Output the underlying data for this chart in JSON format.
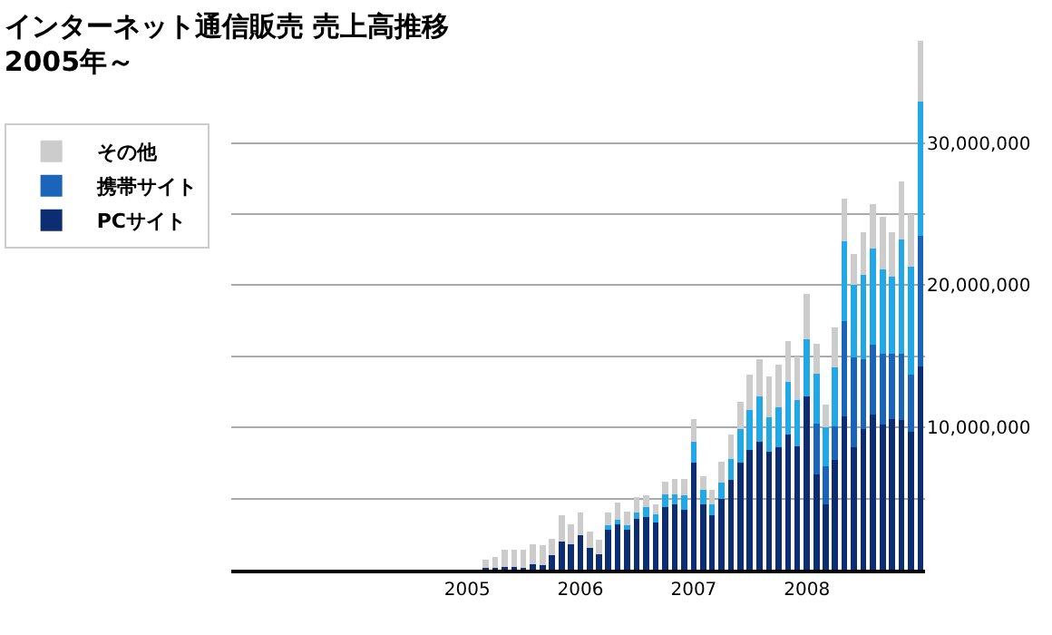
{
  "chart_data": {
    "type": "bar",
    "title": "インターネット通信販売 売上高推移",
    "subtitle": "2005年～",
    "stacked": true,
    "x": [
      "2005-03",
      "2005-04",
      "2005-05",
      "2005-06",
      "2005-07",
      "2005-08",
      "2005-09",
      "2005-10",
      "2005-11",
      "2005-12",
      "2006-01",
      "2006-02",
      "2006-03",
      "2006-04",
      "2006-05",
      "2006-06",
      "2006-07",
      "2006-08",
      "2006-09",
      "2006-10",
      "2006-11",
      "2006-12",
      "2007-01",
      "2007-02",
      "2007-03",
      "2007-04",
      "2007-05",
      "2007-06",
      "2007-07",
      "2007-08",
      "2007-09",
      "2007-10",
      "2007-11",
      "2007-12",
      "2008-01",
      "2008-02",
      "2008-03",
      "2008-04",
      "2008-05",
      "2008-06",
      "2008-07",
      "2008-08",
      "2008-09",
      "2008-10",
      "2008-11",
      "2008-12",
      "2009-01"
    ],
    "series": [
      {
        "name": "PCサイト",
        "color": "#0d2d73",
        "values": [
          100000,
          100000,
          200000,
          200000,
          100000,
          400000,
          300000,
          1000000,
          2000000,
          1800000,
          2400000,
          1500000,
          1100000,
          2900000,
          3200000,
          2800000,
          3600000,
          3700000,
          3300000,
          4400000,
          4600000,
          4200000,
          7500000,
          4600000,
          3800000,
          5000000,
          6300000,
          7500000,
          8400000,
          9000000,
          8300000,
          8600000,
          9500000,
          8700000,
          12200000,
          6700000,
          4600000,
          7700000,
          10800000,
          8600000,
          9900000,
          10900000,
          10200000,
          10600000,
          10500000,
          9700000,
          14300000
        ]
      },
      {
        "name": "携帯サイト",
        "color": "#1a64b9",
        "values": [
          0,
          0,
          0,
          0,
          0,
          0,
          0,
          0,
          0,
          0,
          0,
          0,
          0,
          0,
          0,
          0,
          0,
          0,
          0,
          0,
          0,
          0,
          0,
          0,
          0,
          0,
          0,
          0,
          0,
          0,
          0,
          0,
          0,
          0,
          0,
          3600000,
          2700000,
          2400000,
          6700000,
          6300000,
          4900000,
          4900000,
          5000000,
          4600000,
          4700000,
          4000000,
          9200000
        ]
      },
      {
        "color": "#22a8e6",
        "values": [
          0,
          0,
          0,
          0,
          0,
          0,
          0,
          0,
          0,
          0,
          0,
          0,
          0,
          200000,
          300000,
          300000,
          400000,
          700000,
          600000,
          900000,
          700000,
          1000000,
          1500000,
          1000000,
          800000,
          1100000,
          1500000,
          2400000,
          2800000,
          3200000,
          2400000,
          2800000,
          3700000,
          3200000,
          4000000,
          3500000,
          2700000,
          4100000,
          5600000,
          5100000,
          5900000,
          6800000,
          5900000,
          5400000,
          8000000,
          7600000,
          9400000
        ]
      },
      {
        "name": "その他",
        "color": "#cccccc",
        "values": [
          600000,
          800000,
          1200000,
          1200000,
          1300000,
          1400000,
          1400000,
          1200000,
          1800000,
          1400000,
          1600000,
          1200000,
          1000000,
          900000,
          1200000,
          1000000,
          1100000,
          800000,
          700000,
          900000,
          1100000,
          1200000,
          1600000,
          1000000,
          1000000,
          1500000,
          1700000,
          1900000,
          2500000,
          2600000,
          2900000,
          3000000,
          2900000,
          3100000,
          3200000,
          2100000,
          1600000,
          2800000,
          3000000,
          2200000,
          3000000,
          3100000,
          3700000,
          3100000,
          4100000,
          3700000,
          4300000
        ]
      }
    ],
    "xlim": [
      "2002-12-01",
      "2009-01-16"
    ],
    "xticks": [
      {
        "value": "2005-01-01",
        "label": "2005"
      },
      {
        "value": "2006-01-01",
        "label": "2006"
      },
      {
        "value": "2007-01-01",
        "label": "2007"
      },
      {
        "value": "2008-01-01",
        "label": "2008"
      }
    ],
    "ylim": [
      0,
      37500000
    ],
    "yticks": [
      {
        "value": 5000000,
        "label": null
      },
      {
        "value": 10000000,
        "label": "10,000,000"
      },
      {
        "value": 15000000,
        "label": null
      },
      {
        "value": 20000000,
        "label": "20,000,000"
      },
      {
        "value": 25000000,
        "label": null
      },
      {
        "value": 30000000,
        "label": "30,000,000"
      }
    ],
    "grid": "y",
    "legend": "top left"
  }
}
